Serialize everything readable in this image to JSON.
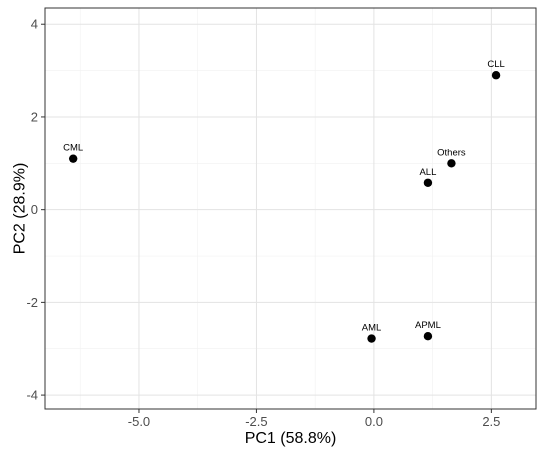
{
  "chart_data": {
    "type": "scatter",
    "xlabel": "PC1 (58.8%)",
    "ylabel": "PC2 (28.9%)",
    "xlim": [
      -7.0,
      3.45
    ],
    "ylim": [
      -4.3,
      4.35
    ],
    "x_ticks": [
      -5.0,
      -2.5,
      0.0,
      2.5
    ],
    "x_tick_labels": [
      "-5.0",
      "-2.5",
      "0.0",
      "2.5"
    ],
    "y_ticks": [
      -4,
      -2,
      0,
      2,
      4
    ],
    "y_tick_labels": [
      "-4",
      "-2",
      "0",
      "2",
      "4"
    ],
    "grid": true,
    "legend": "none",
    "points": [
      {
        "label": "CML",
        "x": -6.4,
        "y": 1.1
      },
      {
        "label": "CLL",
        "x": 2.6,
        "y": 2.9
      },
      {
        "label": "Others",
        "x": 1.65,
        "y": 1.0
      },
      {
        "label": "ALL",
        "x": 1.15,
        "y": 0.58
      },
      {
        "label": "AML",
        "x": -0.05,
        "y": -2.78
      },
      {
        "label": "APML",
        "x": 1.15,
        "y": -2.73
      }
    ],
    "colors": {
      "point": "#000000",
      "grid_major": "#e3e3e3",
      "grid_minor": "#f1f1f1",
      "frame": "#333333"
    }
  }
}
